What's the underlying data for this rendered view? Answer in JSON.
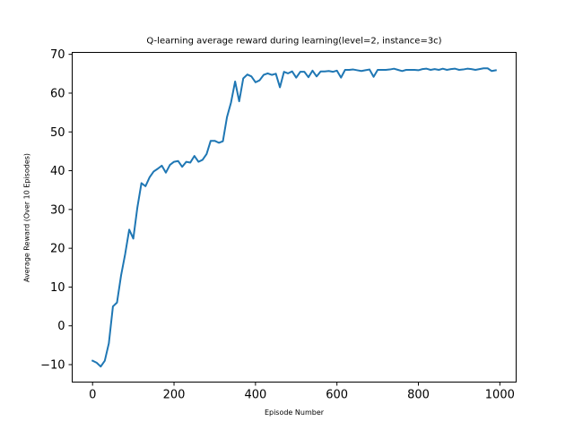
{
  "chart_data": {
    "type": "line",
    "title": "Q-learning average reward during learning(level=2, instance=3c)",
    "xlabel": "Episode Number",
    "ylabel": "Average Reward (Over 10 Episodes)",
    "xlim": [
      -50,
      1040
    ],
    "ylim": [
      -14.5,
      70.5
    ],
    "xticks": [
      0,
      200,
      400,
      600,
      800,
      1000
    ],
    "yticks": [
      -10,
      0,
      10,
      20,
      30,
      40,
      50,
      60,
      70
    ],
    "grid": false,
    "series": [
      {
        "color": "#1f77b4",
        "x": [
          0,
          10,
          20,
          30,
          40,
          50,
          60,
          70,
          80,
          90,
          100,
          110,
          120,
          130,
          140,
          150,
          160,
          170,
          180,
          190,
          200,
          210,
          220,
          230,
          240,
          250,
          260,
          270,
          280,
          290,
          300,
          310,
          320,
          330,
          340,
          350,
          360,
          370,
          380,
          390,
          400,
          410,
          420,
          430,
          440,
          450,
          460,
          470,
          480,
          490,
          500,
          510,
          520,
          530,
          540,
          550,
          560,
          570,
          580,
          590,
          600,
          610,
          620,
          630,
          640,
          650,
          660,
          670,
          680,
          690,
          700,
          710,
          720,
          730,
          740,
          750,
          760,
          770,
          780,
          790,
          800,
          810,
          820,
          830,
          840,
          850,
          860,
          870,
          880,
          890,
          900,
          910,
          920,
          930,
          940,
          950,
          960,
          970,
          980,
          990
        ],
        "y": [
          -9.0,
          -9.5,
          -10.5,
          -9.0,
          -4.5,
          5.0,
          6.0,
          13.0,
          18.5,
          24.8,
          22.5,
          30.5,
          36.8,
          36.0,
          38.3,
          39.8,
          40.5,
          41.3,
          39.5,
          41.5,
          42.3,
          42.5,
          41.0,
          42.3,
          42.1,
          43.8,
          42.3,
          42.8,
          44.3,
          47.7,
          47.7,
          47.2,
          47.6,
          53.8,
          57.6,
          63.0,
          57.9,
          63.8,
          64.8,
          64.3,
          62.8,
          63.3,
          64.7,
          65.1,
          64.7,
          65.0,
          61.5,
          65.5,
          65.1,
          65.6,
          64.0,
          65.5,
          65.5,
          64.1,
          65.8,
          64.3,
          65.6,
          65.6,
          65.7,
          65.5,
          65.8,
          64.0,
          66.0,
          66.0,
          66.1,
          65.9,
          65.7,
          65.9,
          66.1,
          64.2,
          66.0,
          66.0,
          66.0,
          66.1,
          66.3,
          66.0,
          65.7,
          66.0,
          66.0,
          66.0,
          65.9,
          66.2,
          66.3,
          66.0,
          66.2,
          66.0,
          66.3,
          66.0,
          66.2,
          66.3,
          66.0,
          66.1,
          66.3,
          66.2,
          66.0,
          66.2,
          66.4,
          66.4,
          65.7,
          65.9
        ]
      }
    ]
  }
}
